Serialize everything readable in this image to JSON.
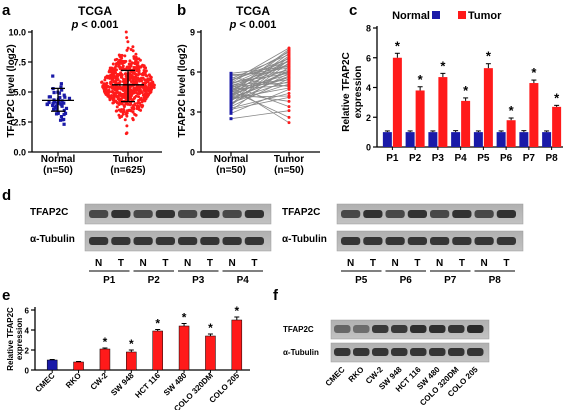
{
  "figure": {
    "panels": {
      "a": {
        "letter": "a",
        "title": "TCGA",
        "pval_p": "p",
        "pval_rest": " < 0.001",
        "ylabel": "TFAP2C level (log2)",
        "yticks": [
          "0.0",
          "2.5",
          "5.0",
          "7.5",
          "10.0"
        ],
        "groups": [
          {
            "label": "Normal",
            "n": "(n=50)"
          },
          {
            "label": "Tumor",
            "n": "(n=625)"
          }
        ]
      },
      "b": {
        "letter": "b",
        "title": "TCGA",
        "pval_p": "p",
        "pval_rest": " < 0.001",
        "ylabel": "TFAP2C level (log2)",
        "yticks": [
          "0",
          "3",
          "6",
          "9"
        ],
        "groups": [
          {
            "label": "Normal",
            "n": "(n=50)"
          },
          {
            "label": "Tumor",
            "n": "(n=50)"
          }
        ]
      },
      "c": {
        "letter": "c",
        "ylabel_line1": "Relative TFAP2C",
        "ylabel_line2": "expression",
        "legend": [
          {
            "label": "Normal",
            "color": "#1a1aa8"
          },
          {
            "label": "Tumor",
            "color": "#ff1a1a"
          }
        ],
        "yticks": [
          "0",
          "2",
          "4",
          "6",
          "8"
        ],
        "star": "*"
      },
      "d": {
        "letter": "d",
        "left_rows": [
          "TFAP2C",
          "α-Tubulin"
        ],
        "right_rows": [
          "TFAP2C",
          "α-Tubulin"
        ],
        "lane_labels": [
          "N",
          "T",
          "N",
          "T",
          "N",
          "T",
          "N",
          "T"
        ],
        "left_pairs": [
          "P1",
          "P2",
          "P3",
          "P4"
        ],
        "right_pairs": [
          "P5",
          "P6",
          "P7",
          "P8"
        ]
      },
      "e": {
        "letter": "e",
        "ylabel_line1": "Relative TFAP2C",
        "ylabel_line2": "expression",
        "yticks": [
          "0",
          "2",
          "4",
          "6"
        ],
        "star": "*"
      },
      "f": {
        "letter": "f",
        "rows": [
          "TFAP2C",
          "α-Tubulin"
        ],
        "lanes": [
          "CMEC",
          "RKO",
          "CW-2",
          "SW 948",
          "HCT 116",
          "SW 480",
          "COLO 320DM",
          "COLO 205"
        ]
      }
    },
    "chart_data": [
      {
        "panel": "a",
        "type": "scatter",
        "title": "TCGA",
        "ylabel": "TFAP2C level (log2)",
        "categories": [
          "Normal (n=50)",
          "Tumor (n=625)"
        ],
        "ylim": [
          0,
          10
        ],
        "series": [
          {
            "name": "Normal",
            "color": "#1a1aa8",
            "n_points": 50,
            "mean": 4.3,
            "sd_low": 3.4,
            "sd_high": 5.3,
            "min": 2.1,
            "max": 7.8
          },
          {
            "name": "Tumor",
            "color": "#ff1a1a",
            "n_points": 625,
            "mean": 5.6,
            "sd_low": 4.2,
            "sd_high": 6.8,
            "min": 0.4,
            "max": 10.0
          }
        ]
      },
      {
        "panel": "b",
        "type": "line",
        "title": "TCGA",
        "ylabel": "TFAP2C level (log2)",
        "categories": [
          "Normal (n=50)",
          "Tumor (n=50)"
        ],
        "ylim": [
          0,
          9
        ],
        "pairs": [
          [
            4.1,
            6.9
          ],
          [
            5.2,
            7.5
          ],
          [
            3.6,
            5.9
          ],
          [
            4.8,
            6.6
          ],
          [
            2.5,
            3.1
          ],
          [
            5.6,
            4.9
          ],
          [
            4.3,
            7.2
          ],
          [
            3.9,
            6.1
          ],
          [
            5.0,
            5.4
          ],
          [
            4.6,
            2.6
          ],
          [
            3.3,
            4.4
          ],
          [
            4.9,
            6.8
          ],
          [
            5.4,
            7.0
          ],
          [
            4.0,
            5.7
          ],
          [
            3.1,
            6.4
          ],
          [
            4.7,
            6.2
          ],
          [
            5.8,
            6.0
          ],
          [
            4.4,
            3.8
          ],
          [
            3.7,
            5.1
          ],
          [
            4.2,
            7.4
          ],
          [
            5.1,
            6.5
          ],
          [
            2.9,
            4.7
          ],
          [
            4.5,
            5.6
          ],
          [
            5.3,
            7.8
          ],
          [
            3.5,
            6.7
          ],
          [
            4.9,
            5.2
          ],
          [
            4.1,
            4.2
          ],
          [
            5.7,
            6.3
          ],
          [
            3.8,
            7.1
          ],
          [
            4.6,
            5.8
          ],
          [
            5.0,
            3.4
          ],
          [
            4.3,
            6.0
          ],
          [
            3.4,
            5.5
          ],
          [
            5.5,
            7.3
          ],
          [
            4.8,
            6.6
          ],
          [
            4.0,
            4.8
          ],
          [
            5.2,
            5.9
          ],
          [
            3.6,
            6.9
          ],
          [
            4.4,
            7.6
          ],
          [
            5.9,
            6.4
          ],
          [
            4.7,
            5.0
          ],
          [
            3.2,
            4.1
          ],
          [
            5.1,
            7.0
          ],
          [
            4.2,
            6.1
          ],
          [
            4.9,
            2.2
          ],
          [
            3.9,
            5.3
          ],
          [
            5.4,
            6.8
          ],
          [
            4.5,
            7.7
          ],
          [
            4.1,
            5.6
          ],
          [
            5.0,
            6.2
          ]
        ]
      },
      {
        "panel": "c",
        "type": "bar",
        "ylabel": "Relative TFAP2C expression",
        "categories": [
          "P1",
          "P2",
          "P3",
          "P4",
          "P5",
          "P6",
          "P7",
          "P8"
        ],
        "ylim": [
          0,
          8
        ],
        "series": [
          {
            "name": "Normal",
            "color": "#1a1aa8",
            "values": [
              1.0,
              1.0,
              1.0,
              1.0,
              1.0,
              1.0,
              1.0,
              1.0
            ],
            "errors": [
              0.08,
              0.08,
              0.08,
              0.1,
              0.08,
              0.08,
              0.1,
              0.08
            ]
          },
          {
            "name": "Tumor",
            "color": "#ff1a1a",
            "values": [
              6.0,
              3.8,
              4.7,
              3.1,
              5.3,
              1.8,
              4.3,
              2.7
            ],
            "errors": [
              0.3,
              0.25,
              0.25,
              0.2,
              0.3,
              0.15,
              0.2,
              0.1
            ]
          }
        ],
        "significant": [
          true,
          true,
          true,
          true,
          true,
          true,
          true,
          true
        ]
      },
      {
        "panel": "e",
        "type": "bar",
        "ylabel": "Relative TFAP2C expression",
        "categories": [
          "CMEC",
          "RKO",
          "CW-2",
          "SW 948",
          "HCT 116",
          "SW 480",
          "COLO 320DM",
          "COLO 205"
        ],
        "ylim": [
          0,
          6
        ],
        "colors": [
          "#1a1aa8",
          "#ff1a1a",
          "#ff1a1a",
          "#ff1a1a",
          "#ff1a1a",
          "#ff1a1a",
          "#ff1a1a",
          "#ff1a1a"
        ],
        "values": [
          1.0,
          0.8,
          2.1,
          1.8,
          3.9,
          4.4,
          3.4,
          5.0
        ],
        "errors": [
          0.05,
          0.05,
          0.1,
          0.2,
          0.15,
          0.25,
          0.2,
          0.3
        ],
        "significant": [
          false,
          false,
          true,
          true,
          true,
          true,
          true,
          true
        ]
      }
    ]
  }
}
